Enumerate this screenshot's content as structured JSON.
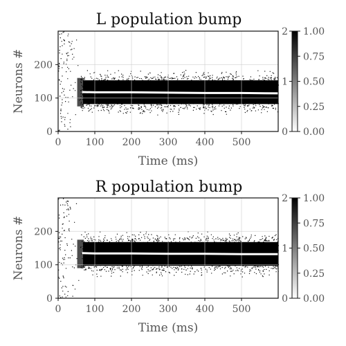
{
  "chart_data": [
    {
      "type": "heatmap",
      "title": "L population bump",
      "xlabel": "Time (ms)",
      "ylabel": "Neurons #",
      "xlim": [
        0,
        600
      ],
      "ylim": [
        0,
        300
      ],
      "x_ticks": [
        "0",
        "100",
        "200",
        "300",
        "400",
        "500"
      ],
      "y_ticks": [
        "0",
        "100",
        "200"
      ],
      "grid": true,
      "colorbar": {
        "ticks": [
          "0.00",
          "0.25",
          "0.50",
          "0.75",
          "1.00"
        ],
        "overlay_ticks": [
          "0",
          "1",
          "2"
        ],
        "cmap": "gray_r"
      },
      "bump": {
        "onset_ms": 60,
        "center": 117,
        "low": 70,
        "high": 165
      },
      "center_line": [
        [
          65,
          118
        ],
        [
          100,
          117
        ],
        [
          200,
          117
        ],
        [
          300,
          116
        ],
        [
          400,
          115
        ],
        [
          500,
          115
        ],
        [
          600,
          114
        ]
      ]
    },
    {
      "type": "heatmap",
      "title": "R population bump",
      "xlabel": "Time (ms)",
      "ylabel": "Neurons #",
      "xlim": [
        0,
        600
      ],
      "ylim": [
        0,
        300
      ],
      "x_ticks": [
        "0",
        "100",
        "200",
        "300",
        "400",
        "500"
      ],
      "y_ticks": [
        "0",
        "100",
        "200"
      ],
      "grid": true,
      "colorbar": {
        "ticks": [
          "0.00",
          "0.25",
          "0.50",
          "0.75",
          "1.00"
        ],
        "overlay_ticks": [
          "0",
          "1",
          "2"
        ],
        "cmap": "gray_r"
      },
      "bump": {
        "onset_ms": 60,
        "center": 135,
        "low": 85,
        "high": 180
      },
      "center_line": [
        [
          65,
          135
        ],
        [
          100,
          134
        ],
        [
          200,
          134
        ],
        [
          300,
          133
        ],
        [
          400,
          133
        ],
        [
          500,
          132
        ],
        [
          600,
          132
        ]
      ]
    }
  ]
}
